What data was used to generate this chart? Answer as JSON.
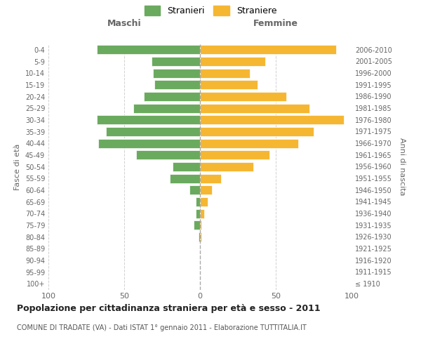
{
  "age_groups": [
    "100+",
    "95-99",
    "90-94",
    "85-89",
    "80-84",
    "75-79",
    "70-74",
    "65-69",
    "60-64",
    "55-59",
    "50-54",
    "45-49",
    "40-44",
    "35-39",
    "30-34",
    "25-29",
    "20-24",
    "15-19",
    "10-14",
    "5-9",
    "0-4"
  ],
  "birth_years": [
    "≤ 1910",
    "1911-1915",
    "1916-1920",
    "1921-1925",
    "1926-1930",
    "1931-1935",
    "1936-1940",
    "1941-1945",
    "1946-1950",
    "1951-1955",
    "1956-1960",
    "1961-1965",
    "1966-1970",
    "1971-1975",
    "1976-1980",
    "1981-1985",
    "1986-1990",
    "1991-1995",
    "1996-2000",
    "2001-2005",
    "2006-2010"
  ],
  "males": [
    0,
    0,
    0,
    0,
    1,
    4,
    3,
    3,
    7,
    20,
    18,
    42,
    67,
    62,
    68,
    44,
    37,
    30,
    31,
    32,
    68
  ],
  "females": [
    0,
    0,
    0,
    0,
    1,
    1,
    3,
    5,
    8,
    14,
    35,
    46,
    65,
    75,
    95,
    72,
    57,
    38,
    33,
    43,
    90
  ],
  "male_color": "#6aaa5e",
  "female_color": "#f5b731",
  "title": "Popolazione per cittadinanza straniera per età e sesso - 2011",
  "subtitle": "COMUNE DI TRADATE (VA) - Dati ISTAT 1° gennaio 2011 - Elaborazione TUTTITALIA.IT",
  "xlabel_left": "Maschi",
  "xlabel_right": "Femmine",
  "ylabel_left": "Fasce di età",
  "ylabel_right": "Anni di nascita",
  "legend_male": "Stranieri",
  "legend_female": "Straniere",
  "xlim": 100,
  "background_color": "#ffffff",
  "grid_color": "#cccccc",
  "bar_edge_color": "#ffffff"
}
